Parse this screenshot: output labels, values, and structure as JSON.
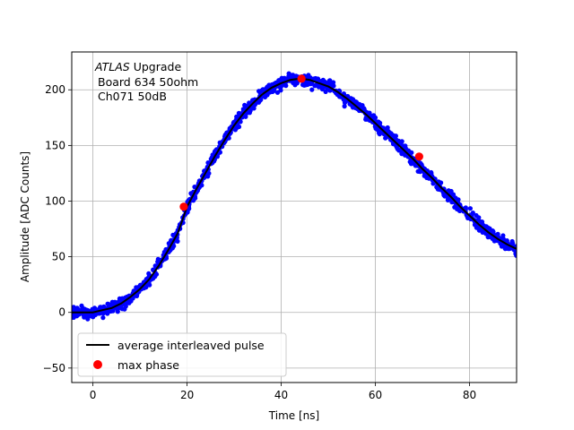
{
  "chart_data": {
    "type": "scatter",
    "xlabel": "Time [ns]",
    "ylabel": "Amplitude [ADC Counts]",
    "xlim": [
      -4.5,
      90
    ],
    "ylim": [
      -63,
      234
    ],
    "xticks": [
      0,
      20,
      40,
      60,
      80
    ],
    "yticks": [
      -50,
      0,
      50,
      100,
      150,
      200
    ],
    "grid": true,
    "annotation": {
      "line1_italic": "ATLAS",
      "line1_rest": " Upgrade",
      "line2": "Board 634 50ohm",
      "line3": "Ch071 50dB"
    },
    "legend": {
      "placement": "lower-left",
      "entries": [
        {
          "label": "average interleaved pulse",
          "style": "line",
          "color": "#000000"
        },
        {
          "label": "max phase",
          "style": "marker",
          "color": "#ff0000"
        }
      ]
    },
    "series": [
      {
        "name": "average interleaved pulse",
        "kind": "line",
        "color": "#000000",
        "x": [
          -4.5,
          0,
          2,
          4,
          6,
          8,
          10,
          12,
          14,
          16,
          18,
          20,
          22,
          24,
          26,
          28,
          30,
          32,
          34,
          36,
          38,
          40,
          42,
          44,
          46,
          48,
          50,
          52,
          54,
          56,
          58,
          60,
          62,
          64,
          66,
          68,
          70,
          72,
          74,
          76,
          78,
          80,
          82,
          84,
          86,
          88,
          90
        ],
        "y": [
          0,
          0,
          2,
          4,
          8,
          14,
          21,
          30,
          42,
          56,
          71,
          95,
          111,
          126,
          141,
          155,
          168,
          179,
          188,
          196,
          202,
          206,
          209,
          210,
          209,
          206,
          203,
          198,
          192,
          185,
          178,
          170,
          162,
          154,
          146,
          138,
          129,
          121,
          112,
          104,
          95,
          87,
          79,
          72,
          66,
          61,
          57
        ]
      },
      {
        "name": "samples",
        "kind": "scatter-noise",
        "color": "#0000ff",
        "noise": 5
      },
      {
        "name": "max phase",
        "kind": "markers",
        "color": "#ff0000",
        "x": [
          19.3,
          44.3,
          69.3
        ],
        "y": [
          95,
          210,
          140
        ]
      }
    ]
  }
}
